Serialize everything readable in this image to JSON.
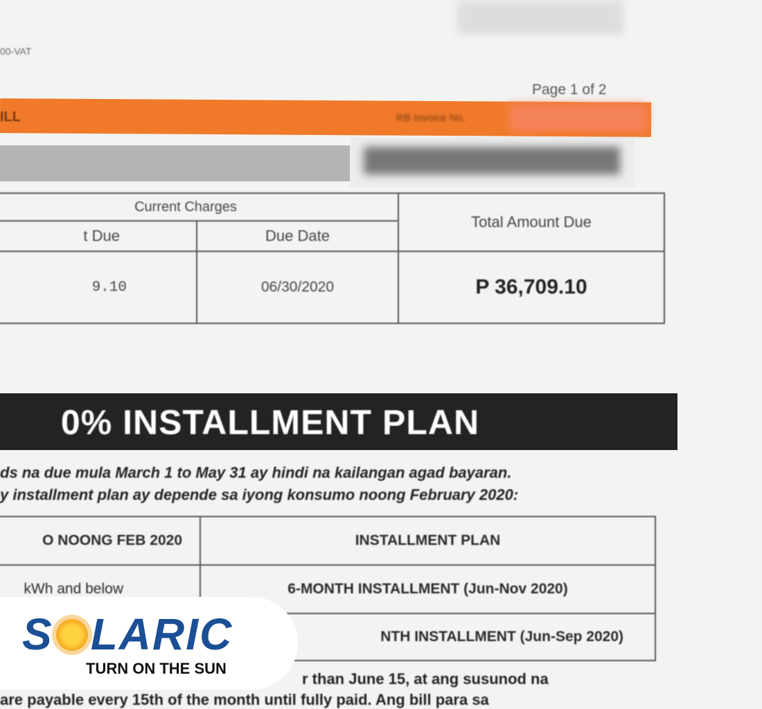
{
  "header": {
    "vat_fragment": "00-VAT",
    "page_label": "Page 1 of 2",
    "bill_fragment": "ILL",
    "invoice_label": "RB Invoice No."
  },
  "charges": {
    "section_label": "Current Charges",
    "amount_due_header_fragment": "t Due",
    "due_date_header": "Due Date",
    "amount_fragment": "9.10",
    "due_date": "06/30/2020",
    "total_header": "Total Amount Due",
    "total_value": "P 36,709.10"
  },
  "banner": {
    "title": "0% INSTALLMENT PLAN"
  },
  "paragraph": {
    "line1": "ds na due mula March 1 to May 31 ay hindi na kailangan agad bayaran.",
    "line2": "y installment plan ay depende sa iyong konsumo noong February 2020:"
  },
  "plan_table": {
    "headers": [
      "O NOONG FEB 2020",
      "INSTALLMENT PLAN"
    ],
    "rows": [
      [
        "kWh and below",
        "6-MONTH INSTALLMENT (Jun-Nov 2020)"
      ],
      [
        "",
        "NTH INSTALLMENT (Jun-Sep 2020)"
      ]
    ]
  },
  "footer_text": {
    "line1": "r than June 15, at ang susunod na",
    "line2": "are payable every 15th of the month until fully paid. Ang bill para sa"
  },
  "logo": {
    "name": "SOLARIC",
    "tagline": "TURN ON THE SUN",
    "colors": {
      "blue": "#1a4f95",
      "sun": "#f5a623"
    }
  },
  "colors": {
    "orange_band": "#f07a2a",
    "banner": "#232323"
  }
}
